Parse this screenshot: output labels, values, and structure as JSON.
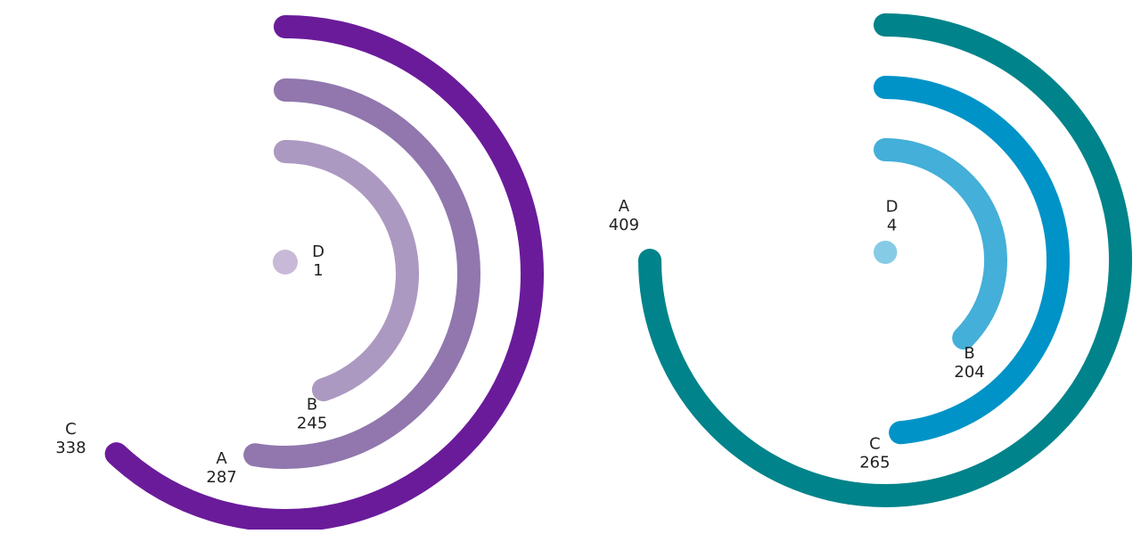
{
  "chart_data": [
    {
      "type": "radial-bar",
      "max_value": 409,
      "full_angle_degrees": 270,
      "series": [
        {
          "category": "C",
          "value": 338,
          "color": "#6a1b9a"
        },
        {
          "category": "A",
          "value": 287,
          "color": "#9177ad"
        },
        {
          "category": "B",
          "value": 245,
          "color": "#ac99c1"
        },
        {
          "category": "D",
          "value": 1,
          "color": "#c9b9d8"
        }
      ]
    },
    {
      "type": "radial-bar",
      "max_value": 409,
      "full_angle_degrees": 270,
      "series": [
        {
          "category": "A",
          "value": 409,
          "color": "#00838a"
        },
        {
          "category": "C",
          "value": 265,
          "color": "#0093c8"
        },
        {
          "category": "B",
          "value": 204,
          "color": "#44afd8"
        },
        {
          "category": "D",
          "value": 4,
          "color": "#86cbe6"
        }
      ]
    }
  ]
}
